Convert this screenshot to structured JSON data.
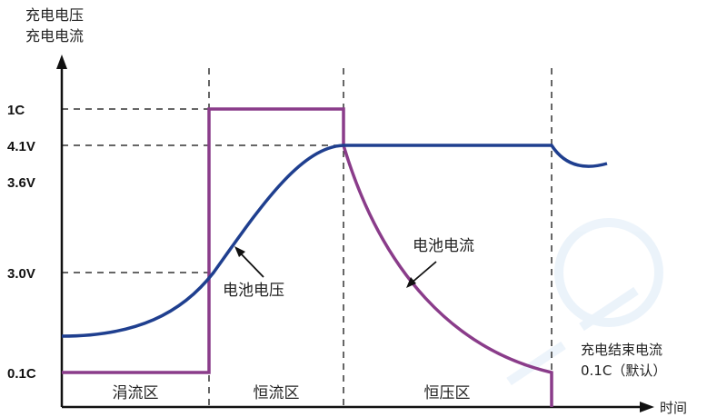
{
  "diagram": {
    "y_axis_title_line1": "充电电压",
    "y_axis_title_line2": "充电电流",
    "x_axis_title": "时间",
    "y_ticks": [
      "1C",
      "4.1V",
      "3.6V",
      "3.0V",
      "0.1C"
    ],
    "phases": [
      "涓流区",
      "恒流区",
      "恒压区"
    ],
    "labels": {
      "voltage": "电池电压",
      "current": "电池电流",
      "end_current_line1": "充电结束电流",
      "end_current_line2": "0.1C（默认）"
    },
    "colors": {
      "voltage": "#1f3f8f",
      "current": "#8a3c8a",
      "axis": "#111111",
      "guide": "#333333"
    }
  }
}
